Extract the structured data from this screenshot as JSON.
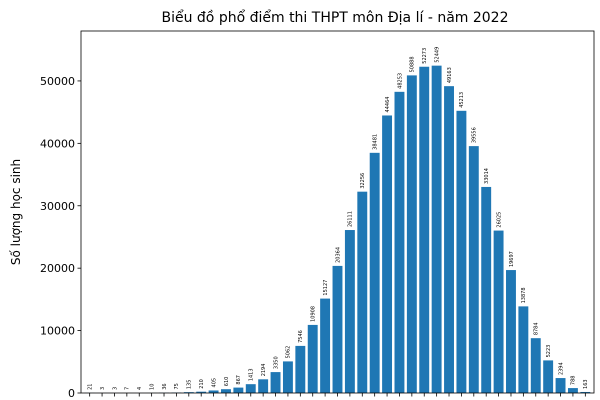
{
  "chart_data": {
    "type": "bar",
    "title": "Biểu đồ phổ điểm thi THPT môn Địa lí - năm 2022",
    "xlabel": "",
    "ylabel": "Số lượng học sinh",
    "values": [
      21,
      3,
      3,
      7,
      4,
      10,
      36,
      75,
      135,
      210,
      405,
      610,
      867,
      1413,
      2194,
      3350,
      5062,
      7546,
      10908,
      15127,
      20364,
      26111,
      32256,
      38481,
      44464,
      48253,
      50888,
      52273,
      52449,
      49163,
      45213,
      39556,
      33014,
      26025,
      19697,
      13878,
      8784,
      5223,
      2394,
      788,
      163
    ],
    "y_ticks": [
      0,
      10000,
      20000,
      30000,
      40000,
      50000
    ],
    "ylim": [
      0,
      58000
    ],
    "grid": false,
    "bar_color": "#1f77b4"
  }
}
